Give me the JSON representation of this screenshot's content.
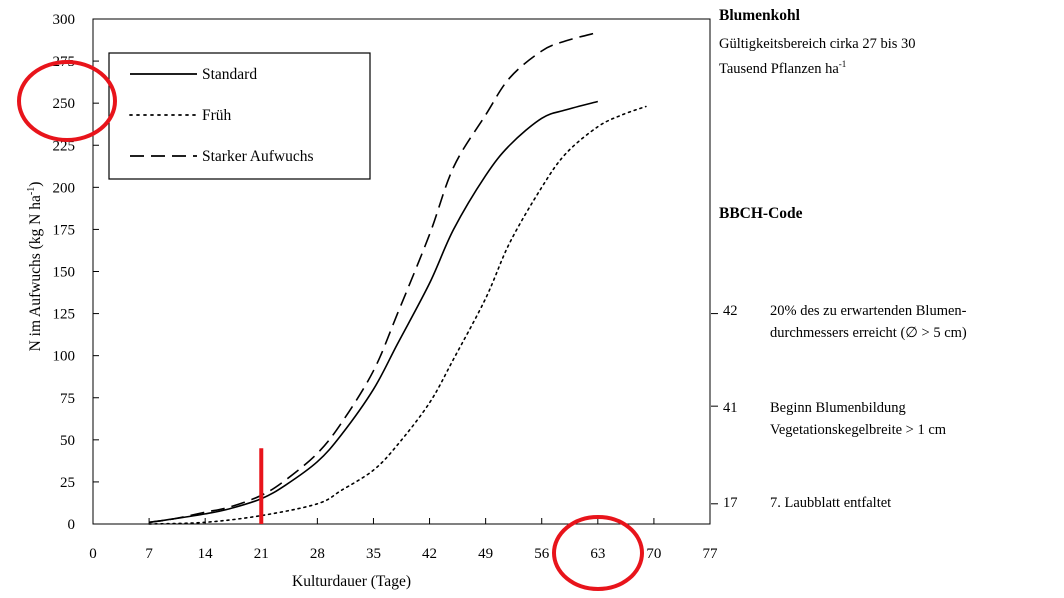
{
  "chart_data": {
    "type": "line",
    "xlabel": "Kulturdauer (Tage)",
    "ylabel": "N im Aufwuchs (kg N ha",
    "ylabel_sup": "-1",
    "ylabel_close": ")",
    "xlim": [
      0,
      77
    ],
    "ylim": [
      0,
      300
    ],
    "xticks": [
      0,
      7,
      14,
      21,
      28,
      35,
      42,
      49,
      56,
      63,
      70,
      77
    ],
    "yticks": [
      0,
      25,
      50,
      75,
      100,
      125,
      150,
      175,
      200,
      225,
      250,
      275,
      300
    ],
    "legend_position": "top-left",
    "series": [
      {
        "name": "Standard",
        "style": "solid",
        "x": [
          7,
          10,
          14,
          17,
          21,
          24,
          28,
          31,
          35,
          38,
          42,
          45,
          49,
          52,
          56,
          59,
          63
        ],
        "y": [
          1,
          3,
          6,
          9,
          15,
          23,
          37,
          53,
          80,
          107,
          143,
          175,
          207,
          225,
          241,
          246,
          251
        ]
      },
      {
        "name": "Früh",
        "style": "dotted",
        "x": [
          7,
          14,
          21,
          28,
          31,
          35,
          38,
          42,
          45,
          49,
          52,
          56,
          59,
          63,
          66,
          69
        ],
        "y": [
          0,
          1,
          5,
          12,
          20,
          32,
          47,
          72,
          98,
          134,
          167,
          200,
          220,
          236,
          243,
          248
        ]
      },
      {
        "name": "Starker Aufwuchs",
        "style": "dashed",
        "x": [
          7,
          10,
          14,
          17,
          21,
          24,
          28,
          31,
          35,
          38,
          42,
          45,
          49,
          52,
          56,
          59,
          63
        ],
        "y": [
          1,
          3,
          7,
          10,
          17,
          26,
          42,
          60,
          91,
          125,
          172,
          212,
          243,
          265,
          281,
          287,
          292
        ]
      }
    ],
    "marker_line": {
      "x": 21,
      "y_from": 0,
      "y_to": 45,
      "color": "#e8141b"
    },
    "circles": [
      {
        "cx": 0,
        "cy": 250,
        "color": "#e8141b"
      },
      {
        "cx": 63,
        "cy": 0,
        "color": "#e8141b"
      }
    ],
    "right_axis_ticks": [
      {
        "code": "42",
        "y": 125
      },
      {
        "code": "41",
        "y": 70
      },
      {
        "code": "17",
        "y": 12
      }
    ]
  },
  "side": {
    "title": "Blumenkohl",
    "line1": "Gültigkeitsbereich cirka 27 bis 30",
    "line2": "Tausend Pflanzen ha",
    "line2_sup": "-1",
    "bbch_title": "BBCH-Code"
  },
  "bbch": [
    {
      "code": "42",
      "line1": "20% des zu erwartenden Blumen-",
      "line2": "durchmessers erreicht  (∅ > 5 cm)"
    },
    {
      "code": "41",
      "line1": "Beginn Blumenbildung",
      "line2": "Vegetationskegelbreite > 1 cm"
    },
    {
      "code": "17",
      "line1": "7. Laubblatt entfaltet",
      "line2": ""
    }
  ],
  "colors": {
    "annotation": "#e8141b",
    "line": "#000000"
  }
}
